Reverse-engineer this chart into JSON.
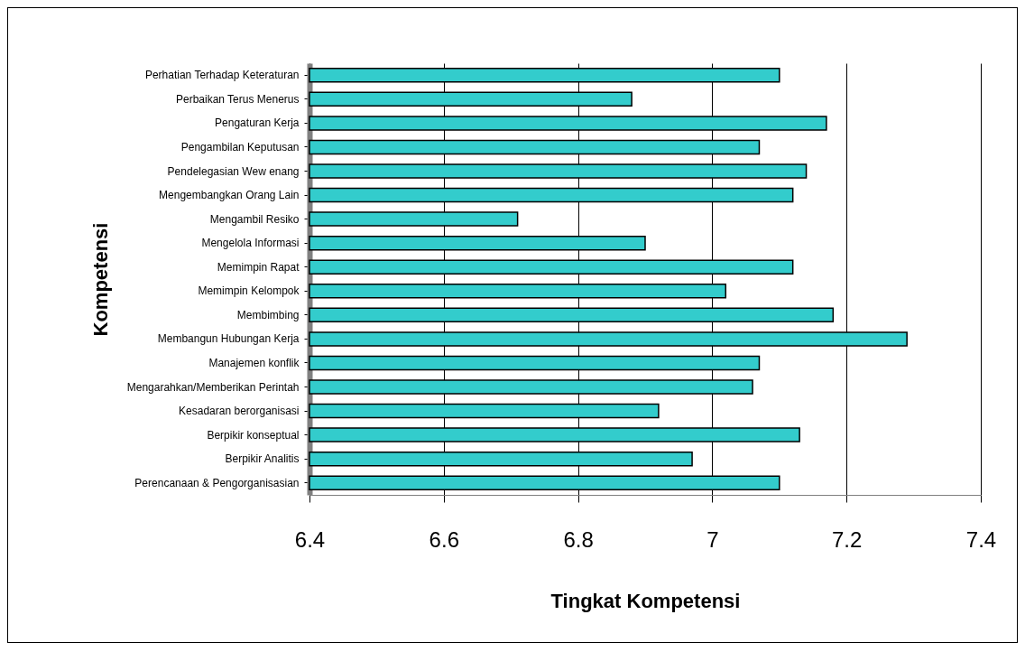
{
  "chart_data": {
    "type": "bar",
    "orientation": "horizontal",
    "xlabel": "Tingkat Kompetensi",
    "ylabel": "Kompetensi",
    "categories": [
      "Perhatian Terhadap Keteraturan",
      "Perbaikan Terus Menerus",
      "Pengaturan Kerja",
      "Pengambilan Keputusan",
      "Pendelegasian Wew enang",
      "Mengembangkan Orang Lain",
      "Mengambil Resiko",
      "Mengelola Informasi",
      "Memimpin Rapat",
      "Memimpin Kelompok",
      "Membimbing",
      "Membangun Hubungan Kerja",
      "Manajemen konflik",
      "Mengarahkan/Memberikan Perintah",
      "Kesadaran berorganisasi",
      "Berpikir konseptual",
      "Berpikir Analitis",
      "Perencanaan & Pengorganisasian"
    ],
    "values": [
      7.1,
      6.88,
      7.17,
      7.07,
      7.14,
      7.12,
      6.71,
      6.9,
      7.12,
      7.02,
      7.18,
      7.29,
      7.07,
      7.06,
      6.92,
      7.13,
      6.97,
      7.1
    ],
    "color": "#33cccc",
    "xlim": [
      6.4,
      7.4
    ],
    "xticks": [
      6.4,
      6.6,
      6.8,
      7,
      7.2,
      7.4
    ],
    "grid": "x"
  }
}
